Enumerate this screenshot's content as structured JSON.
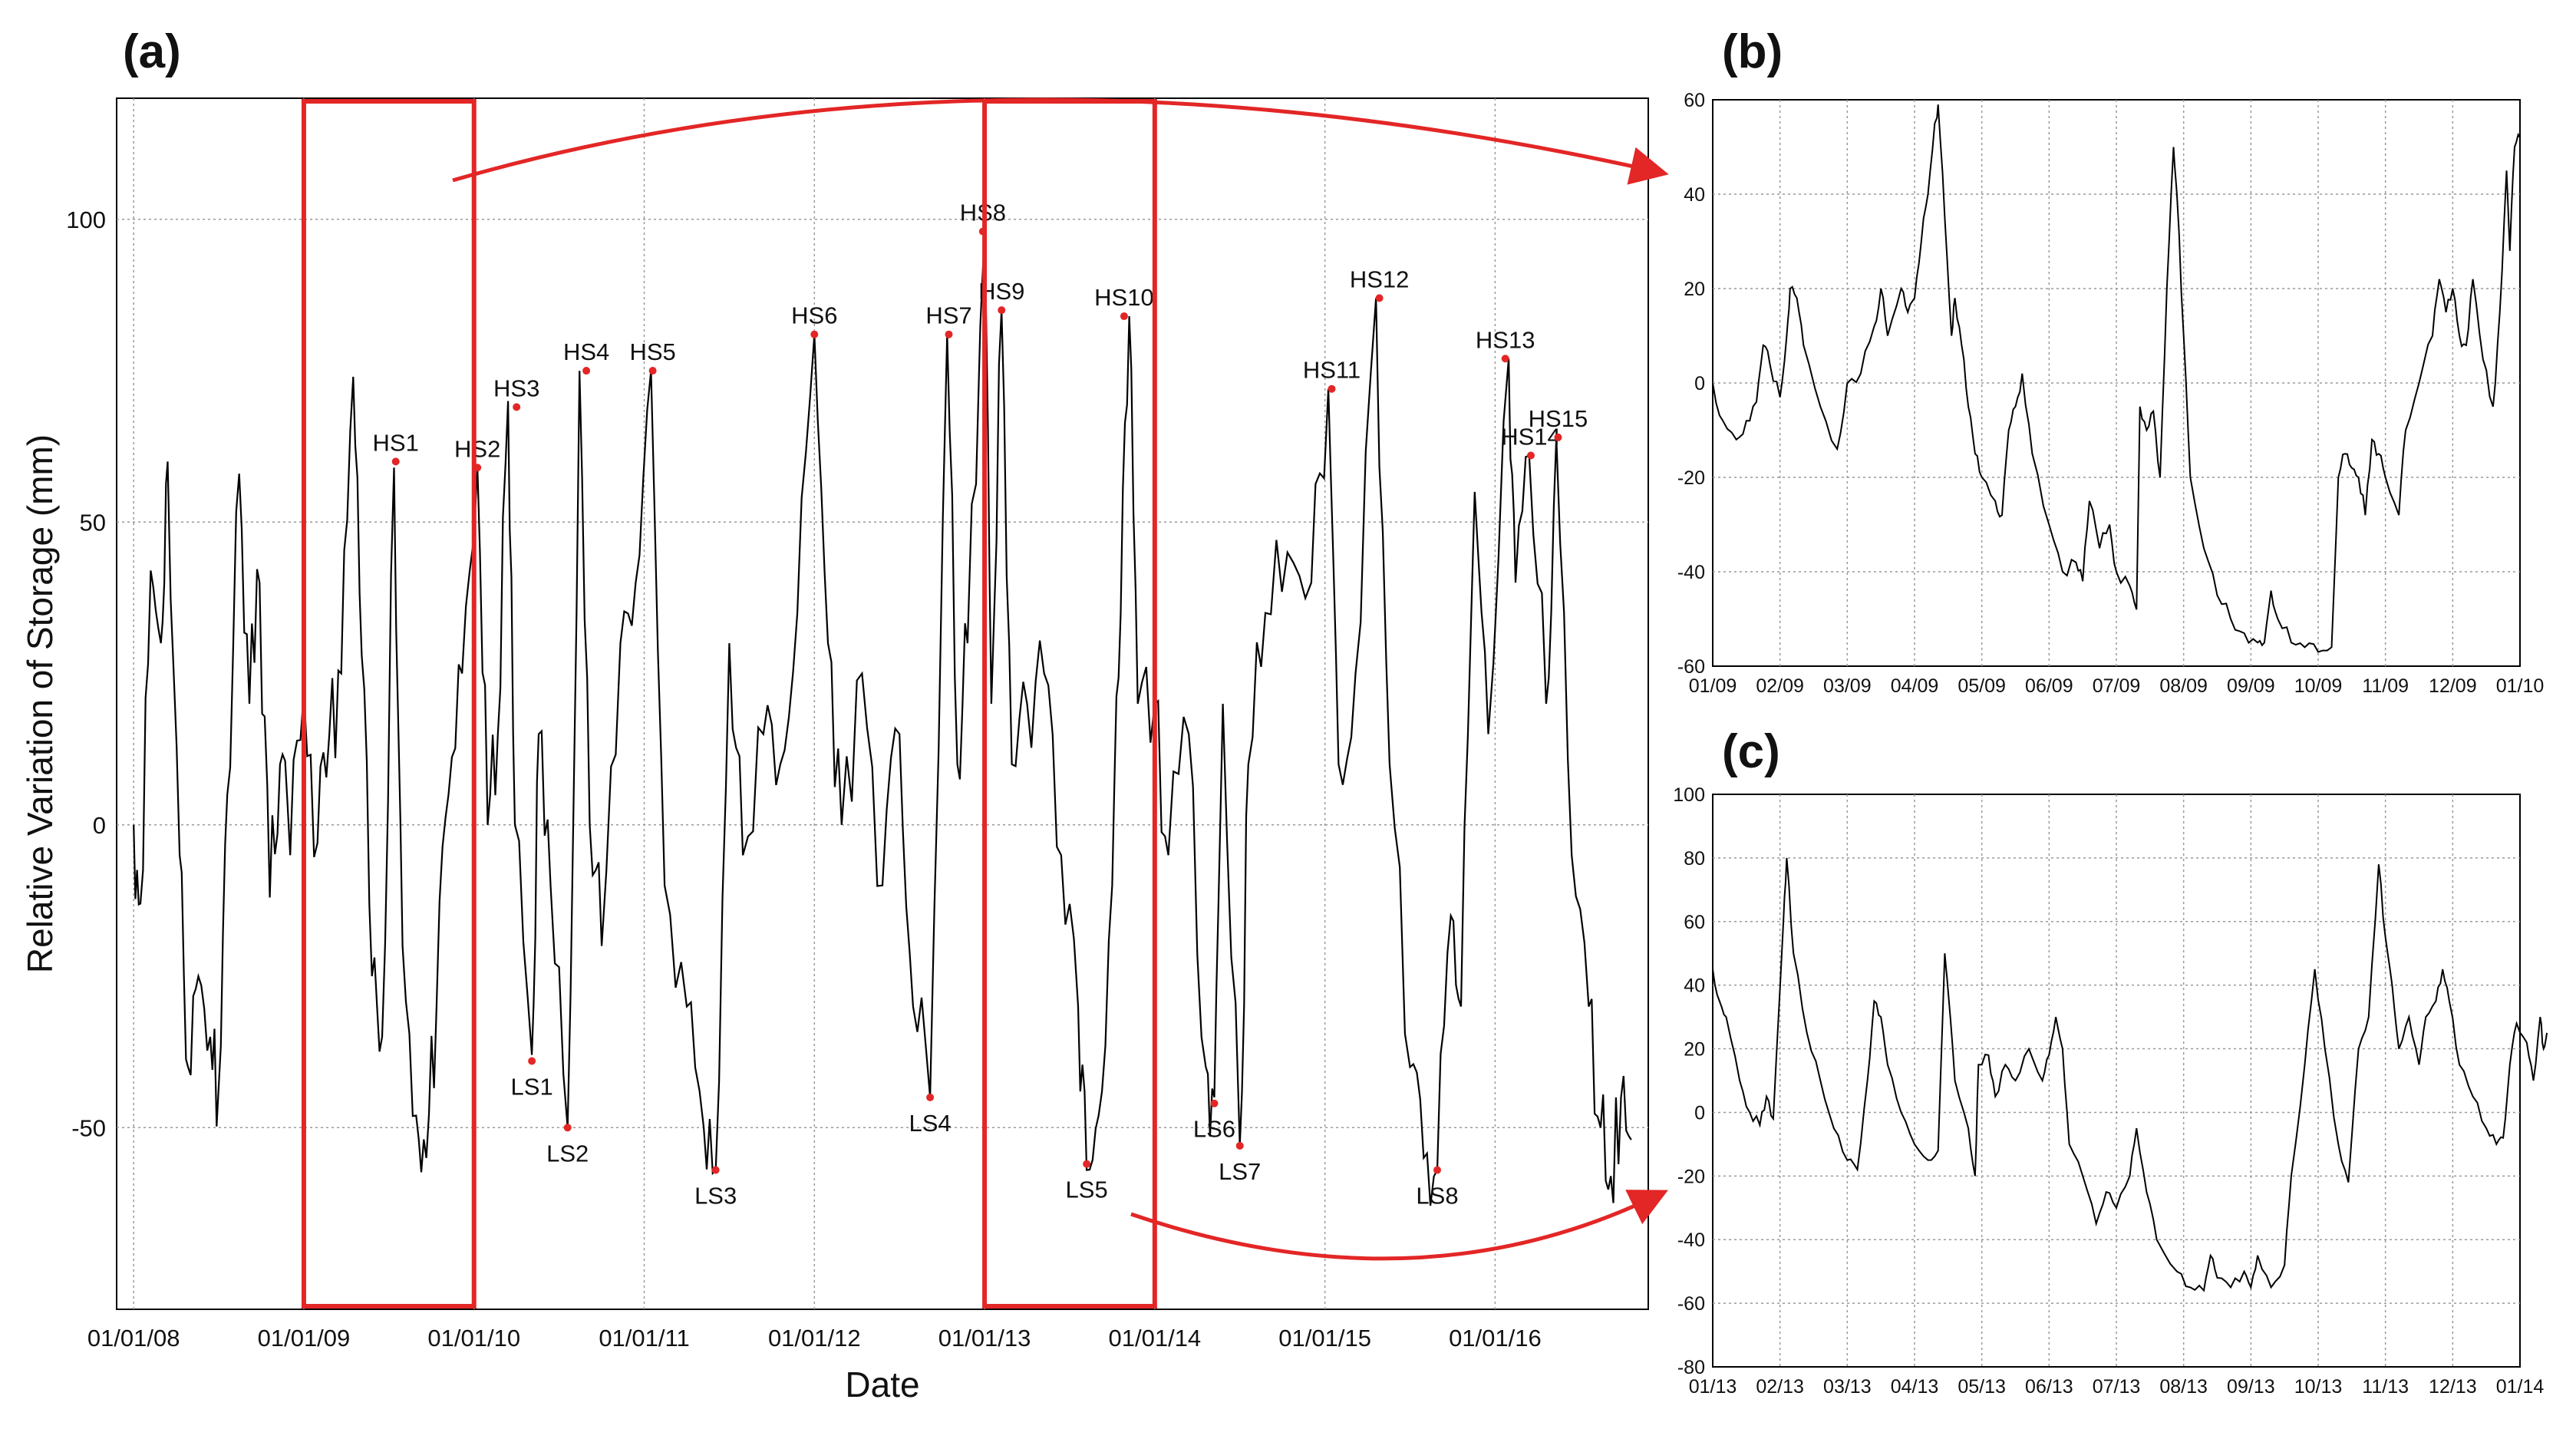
{
  "figure": {
    "panel_labels": [
      "(a)",
      "(b)",
      "(c)"
    ]
  },
  "chart_data": [
    {
      "id": "a",
      "type": "line",
      "title": "",
      "xlabel": "Date",
      "ylabel": "Relative Variation of Storage (mm)",
      "xticks": [
        "01/01/08",
        "01/01/09",
        "01/01/10",
        "01/01/11",
        "01/01/12",
        "01/01/13",
        "01/01/14",
        "01/01/15",
        "01/01/16"
      ],
      "xlim_years": [
        2007.9,
        2016.9
      ],
      "yticks": [
        -50,
        0,
        50,
        100
      ],
      "ylim": [
        -80,
        120
      ],
      "grid": true,
      "series_color": "#000000",
      "highlight_color": "#e32626",
      "highlight_windows": [
        [
          2009.0,
          2010.0
        ],
        [
          2013.0,
          2014.0
        ]
      ],
      "series_keypoints": [
        [
          2008.0,
          0
        ],
        [
          2008.04,
          -13
        ],
        [
          2008.1,
          42
        ],
        [
          2008.16,
          30
        ],
        [
          2008.2,
          60
        ],
        [
          2008.27,
          -5
        ],
        [
          2008.32,
          -40
        ],
        [
          2008.38,
          -25
        ],
        [
          2008.45,
          -35
        ],
        [
          2008.5,
          -43
        ],
        [
          2008.55,
          5
        ],
        [
          2008.62,
          58
        ],
        [
          2008.68,
          20
        ],
        [
          2008.74,
          40
        ],
        [
          2008.8,
          -12
        ],
        [
          2008.86,
          10
        ],
        [
          2008.92,
          -5
        ],
        [
          2009.0,
          22
        ],
        [
          2009.08,
          -3
        ],
        [
          2009.15,
          15
        ],
        [
          2009.22,
          25
        ],
        [
          2009.29,
          74
        ],
        [
          2009.34,
          28
        ],
        [
          2009.4,
          -25
        ],
        [
          2009.46,
          -35
        ],
        [
          2009.53,
          59
        ],
        [
          2009.58,
          -20
        ],
        [
          2009.66,
          -48
        ],
        [
          2009.72,
          -55
        ],
        [
          2009.78,
          -30
        ],
        [
          2009.85,
          5
        ],
        [
          2009.93,
          25
        ],
        [
          2010.02,
          59
        ],
        [
          2010.08,
          0
        ],
        [
          2010.14,
          15
        ],
        [
          2010.2,
          70
        ],
        [
          2010.24,
          0
        ],
        [
          2010.34,
          -38
        ],
        [
          2010.38,
          15
        ],
        [
          2010.45,
          -10
        ],
        [
          2010.55,
          -50
        ],
        [
          2010.62,
          75
        ],
        [
          2010.68,
          0
        ],
        [
          2010.75,
          -20
        ],
        [
          2010.86,
          30
        ],
        [
          2010.95,
          40
        ],
        [
          2011.04,
          75
        ],
        [
          2011.12,
          -10
        ],
        [
          2011.25,
          -30
        ],
        [
          2011.35,
          -50
        ],
        [
          2011.42,
          -57
        ],
        [
          2011.5,
          30
        ],
        [
          2011.58,
          -5
        ],
        [
          2011.7,
          15
        ],
        [
          2011.8,
          10
        ],
        [
          2011.9,
          35
        ],
        [
          2012.0,
          81
        ],
        [
          2012.08,
          30
        ],
        [
          2012.16,
          0
        ],
        [
          2012.28,
          25
        ],
        [
          2012.4,
          -10
        ],
        [
          2012.5,
          15
        ],
        [
          2012.58,
          -30
        ],
        [
          2012.68,
          -45
        ],
        [
          2012.78,
          81
        ],
        [
          2012.84,
          10
        ],
        [
          2012.9,
          30
        ],
        [
          2013.0,
          98
        ],
        [
          2013.04,
          20
        ],
        [
          2013.1,
          85
        ],
        [
          2013.16,
          10
        ],
        [
          2013.25,
          20
        ],
        [
          2013.35,
          25
        ],
        [
          2013.45,
          -5
        ],
        [
          2013.55,
          -30
        ],
        [
          2013.6,
          -57
        ],
        [
          2013.67,
          -48
        ],
        [
          2013.75,
          -10
        ],
        [
          2013.8,
          35
        ],
        [
          2013.85,
          84
        ],
        [
          2013.9,
          20
        ],
        [
          2014.0,
          20
        ],
        [
          2014.08,
          -5
        ],
        [
          2014.2,
          15
        ],
        [
          2014.3,
          -40
        ],
        [
          2014.35,
          -45
        ],
        [
          2014.4,
          20
        ],
        [
          2014.5,
          -53
        ],
        [
          2014.55,
          10
        ],
        [
          2014.65,
          35
        ],
        [
          2014.78,
          45
        ],
        [
          2014.92,
          40
        ],
        [
          2015.02,
          72
        ],
        [
          2015.08,
          10
        ],
        [
          2015.18,
          25
        ],
        [
          2015.3,
          87
        ],
        [
          2015.38,
          10
        ],
        [
          2015.5,
          -40
        ],
        [
          2015.58,
          -55
        ],
        [
          2015.66,
          -57
        ],
        [
          2015.74,
          -15
        ],
        [
          2015.8,
          -30
        ],
        [
          2015.88,
          55
        ],
        [
          2015.96,
          15
        ],
        [
          2016.08,
          77
        ],
        [
          2016.12,
          40
        ],
        [
          2016.2,
          61
        ],
        [
          2016.3,
          20
        ],
        [
          2016.36,
          64
        ],
        [
          2016.45,
          -5
        ],
        [
          2016.55,
          -30
        ],
        [
          2016.62,
          -50
        ],
        [
          2016.68,
          -58
        ],
        [
          2016.74,
          -45
        ],
        [
          2016.8,
          -52
        ]
      ],
      "annotations": [
        {
          "label": "HS1",
          "date": 2009.54,
          "value": 60
        },
        {
          "label": "HS2",
          "date": 2010.02,
          "value": 59
        },
        {
          "label": "HS3",
          "date": 2010.25,
          "value": 69
        },
        {
          "label": "HS4",
          "date": 2010.66,
          "value": 75
        },
        {
          "label": "HS5",
          "date": 2011.05,
          "value": 75
        },
        {
          "label": "HS6",
          "date": 2012.0,
          "value": 81
        },
        {
          "label": "HS7",
          "date": 2012.79,
          "value": 81
        },
        {
          "label": "HS8",
          "date": 2012.99,
          "value": 98
        },
        {
          "label": "HS9",
          "date": 2013.1,
          "value": 85
        },
        {
          "label": "HS10",
          "date": 2013.82,
          "value": 84
        },
        {
          "label": "HS11",
          "date": 2015.04,
          "value": 72
        },
        {
          "label": "HS12",
          "date": 2015.32,
          "value": 87
        },
        {
          "label": "HS13",
          "date": 2016.06,
          "value": 77
        },
        {
          "label": "HS14",
          "date": 2016.21,
          "value": 61
        },
        {
          "label": "HS15",
          "date": 2016.37,
          "value": 64
        },
        {
          "label": "LS1",
          "date": 2010.34,
          "value": -39
        },
        {
          "label": "LS2",
          "date": 2010.55,
          "value": -50
        },
        {
          "label": "LS3",
          "date": 2011.42,
          "value": -57
        },
        {
          "label": "LS4",
          "date": 2012.68,
          "value": -45
        },
        {
          "label": "LS5",
          "date": 2013.6,
          "value": -56
        },
        {
          "label": "LS6",
          "date": 2014.35,
          "value": -46
        },
        {
          "label": "LS7",
          "date": 2014.5,
          "value": -53
        },
        {
          "label": "LS8",
          "date": 2015.66,
          "value": -57
        }
      ]
    },
    {
      "id": "b",
      "type": "line",
      "title": "",
      "xticks": [
        "01/09",
        "02/09",
        "03/09",
        "04/09",
        "05/09",
        "06/09",
        "07/09",
        "08/09",
        "09/09",
        "10/09",
        "11/09",
        "12/09",
        "01/10"
      ],
      "yticks": [
        -60,
        -40,
        -20,
        0,
        20,
        40,
        60
      ],
      "ylim": [
        -60,
        60
      ],
      "grid": true,
      "series_keypoints": [
        [
          0.0,
          0
        ],
        [
          0.15,
          -8
        ],
        [
          0.35,
          -12
        ],
        [
          0.5,
          -8
        ],
        [
          0.65,
          -4
        ],
        [
          0.75,
          8
        ],
        [
          0.85,
          4
        ],
        [
          1.0,
          -3
        ],
        [
          1.1,
          10
        ],
        [
          1.15,
          20
        ],
        [
          1.25,
          18
        ],
        [
          1.35,
          8
        ],
        [
          1.6,
          -5
        ],
        [
          1.85,
          -14
        ],
        [
          2.0,
          0
        ],
        [
          2.2,
          2
        ],
        [
          2.4,
          12
        ],
        [
          2.5,
          20
        ],
        [
          2.6,
          10
        ],
        [
          2.8,
          20
        ],
        [
          2.9,
          15
        ],
        [
          3.0,
          18
        ],
        [
          3.1,
          30
        ],
        [
          3.2,
          40
        ],
        [
          3.3,
          55
        ],
        [
          3.35,
          59
        ],
        [
          3.45,
          35
        ],
        [
          3.55,
          10
        ],
        [
          3.6,
          18
        ],
        [
          3.7,
          8
        ],
        [
          3.8,
          -5
        ],
        [
          3.9,
          -15
        ],
        [
          4.0,
          -20
        ],
        [
          4.2,
          -25
        ],
        [
          4.3,
          -28
        ],
        [
          4.4,
          -10
        ],
        [
          4.5,
          -5
        ],
        [
          4.6,
          2
        ],
        [
          4.75,
          -15
        ],
        [
          5.0,
          -30
        ],
        [
          5.2,
          -40
        ],
        [
          5.4,
          -38
        ],
        [
          5.5,
          -42
        ],
        [
          5.6,
          -25
        ],
        [
          5.75,
          -35
        ],
        [
          5.9,
          -30
        ],
        [
          6.0,
          -40
        ],
        [
          6.2,
          -43
        ],
        [
          6.3,
          -48
        ],
        [
          6.35,
          -5
        ],
        [
          6.45,
          -10
        ],
        [
          6.55,
          -6
        ],
        [
          6.65,
          -20
        ],
        [
          6.75,
          20
        ],
        [
          6.85,
          50
        ],
        [
          6.9,
          40
        ],
        [
          7.0,
          10
        ],
        [
          7.1,
          -20
        ],
        [
          7.3,
          -35
        ],
        [
          7.5,
          -45
        ],
        [
          7.7,
          -50
        ],
        [
          7.9,
          -53
        ],
        [
          8.1,
          -55
        ],
        [
          8.2,
          -55
        ],
        [
          8.3,
          -44
        ],
        [
          8.4,
          -50
        ],
        [
          8.6,
          -55
        ],
        [
          8.8,
          -56
        ],
        [
          9.0,
          -57
        ],
        [
          9.2,
          -56
        ],
        [
          9.3,
          -20
        ],
        [
          9.4,
          -15
        ],
        [
          9.5,
          -18
        ],
        [
          9.6,
          -20
        ],
        [
          9.7,
          -28
        ],
        [
          9.8,
          -12
        ],
        [
          9.9,
          -15
        ],
        [
          10.0,
          -20
        ],
        [
          10.2,
          -28
        ],
        [
          10.3,
          -10
        ],
        [
          10.5,
          0
        ],
        [
          10.7,
          10
        ],
        [
          10.8,
          22
        ],
        [
          10.9,
          15
        ],
        [
          11.0,
          20
        ],
        [
          11.1,
          10
        ],
        [
          11.2,
          8
        ],
        [
          11.3,
          22
        ],
        [
          11.45,
          5
        ],
        [
          11.6,
          -5
        ],
        [
          11.7,
          15
        ],
        [
          11.8,
          45
        ],
        [
          11.85,
          28
        ],
        [
          11.92,
          50
        ],
        [
          12.0,
          52
        ]
      ]
    },
    {
      "id": "c",
      "type": "line",
      "title": "",
      "xticks": [
        "01/13",
        "02/13",
        "03/13",
        "04/13",
        "05/13",
        "06/13",
        "07/13",
        "08/13",
        "09/13",
        "10/13",
        "11/13",
        "12/13",
        "01/14"
      ],
      "yticks": [
        -80,
        -60,
        -40,
        -20,
        0,
        20,
        40,
        60,
        80,
        100
      ],
      "ylim": [
        -80,
        100
      ],
      "grid": true,
      "series_keypoints": [
        [
          0.0,
          45
        ],
        [
          0.1,
          35
        ],
        [
          0.2,
          30
        ],
        [
          0.4,
          10
        ],
        [
          0.55,
          0
        ],
        [
          0.7,
          -4
        ],
        [
          0.8,
          5
        ],
        [
          0.9,
          -2
        ],
        [
          1.05,
          60
        ],
        [
          1.1,
          80
        ],
        [
          1.2,
          50
        ],
        [
          1.4,
          25
        ],
        [
          1.6,
          10
        ],
        [
          1.8,
          -5
        ],
        [
          2.0,
          -15
        ],
        [
          2.15,
          -18
        ],
        [
          2.3,
          10
        ],
        [
          2.4,
          35
        ],
        [
          2.5,
          30
        ],
        [
          2.6,
          15
        ],
        [
          2.8,
          0
        ],
        [
          3.0,
          -10
        ],
        [
          3.2,
          -15
        ],
        [
          3.35,
          -12
        ],
        [
          3.45,
          50
        ],
        [
          3.5,
          38
        ],
        [
          3.6,
          10
        ],
        [
          3.8,
          -5
        ],
        [
          3.9,
          -20
        ],
        [
          3.95,
          15
        ],
        [
          4.1,
          18
        ],
        [
          4.2,
          5
        ],
        [
          4.35,
          15
        ],
        [
          4.5,
          10
        ],
        [
          4.7,
          20
        ],
        [
          4.9,
          10
        ],
        [
          5.0,
          18
        ],
        [
          5.1,
          30
        ],
        [
          5.2,
          20
        ],
        [
          5.3,
          -10
        ],
        [
          5.5,
          -20
        ],
        [
          5.7,
          -35
        ],
        [
          5.85,
          -25
        ],
        [
          6.0,
          -30
        ],
        [
          6.2,
          -20
        ],
        [
          6.3,
          -5
        ],
        [
          6.45,
          -25
        ],
        [
          6.6,
          -40
        ],
        [
          6.9,
          -50
        ],
        [
          7.1,
          -55
        ],
        [
          7.3,
          -56
        ],
        [
          7.4,
          -45
        ],
        [
          7.5,
          -52
        ],
        [
          7.7,
          -55
        ],
        [
          7.9,
          -50
        ],
        [
          8.0,
          -55
        ],
        [
          8.1,
          -45
        ],
        [
          8.3,
          -55
        ],
        [
          8.5,
          -48
        ],
        [
          8.6,
          -20
        ],
        [
          8.8,
          15
        ],
        [
          8.95,
          45
        ],
        [
          9.1,
          20
        ],
        [
          9.3,
          -10
        ],
        [
          9.45,
          -22
        ],
        [
          9.6,
          20
        ],
        [
          9.75,
          30
        ],
        [
          9.9,
          78
        ],
        [
          10.0,
          55
        ],
        [
          10.1,
          40
        ],
        [
          10.2,
          20
        ],
        [
          10.35,
          30
        ],
        [
          10.5,
          15
        ],
        [
          10.6,
          30
        ],
        [
          10.75,
          35
        ],
        [
          10.85,
          45
        ],
        [
          10.95,
          35
        ],
        [
          11.1,
          15
        ],
        [
          11.3,
          5
        ],
        [
          11.5,
          -5
        ],
        [
          11.65,
          -10
        ],
        [
          11.75,
          -8
        ],
        [
          11.85,
          15
        ],
        [
          11.95,
          28
        ],
        [
          12.1,
          22
        ],
        [
          12.2,
          10
        ],
        [
          12.3,
          30
        ],
        [
          12.35,
          20
        ],
        [
          12.4,
          25
        ]
      ]
    }
  ]
}
